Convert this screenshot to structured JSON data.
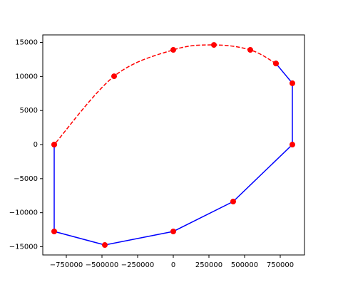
{
  "chart_data": {
    "type": "line",
    "series": [
      {
        "color": "#0000ff",
        "marker_color": "#ff0000",
        "linestyle": "solid",
        "smooth": false,
        "x": [
          -835000,
          -835000,
          -480000,
          0,
          420000,
          835000,
          835000,
          720000
        ],
        "values": [
          0,
          -12750,
          -14740,
          -12750,
          -8360,
          0,
          9000,
          11900
        ]
      },
      {
        "color": "#ff0000",
        "marker_color": "#ff0000",
        "linestyle": "dashed",
        "smooth": true,
        "x": [
          720000,
          540000,
          285000,
          0,
          -415000,
          -835000
        ],
        "values": [
          11900,
          13900,
          14630,
          13900,
          10030,
          0
        ]
      }
    ],
    "xlim": [
      -915000,
      920000
    ],
    "ylim": [
      -16200,
      16100
    ],
    "xticks": [
      {
        "value": -750000,
        "label": "−750000"
      },
      {
        "value": -500000,
        "label": "−500000"
      },
      {
        "value": -250000,
        "label": "−250000"
      },
      0,
      250000,
      500000,
      750000
    ],
    "yticks": [
      {
        "value": -15000,
        "label": "−15000"
      },
      {
        "value": -10000,
        "label": "−10000"
      },
      {
        "value": -5000,
        "label": "−5000"
      },
      0,
      5000,
      10000,
      15000
    ]
  }
}
